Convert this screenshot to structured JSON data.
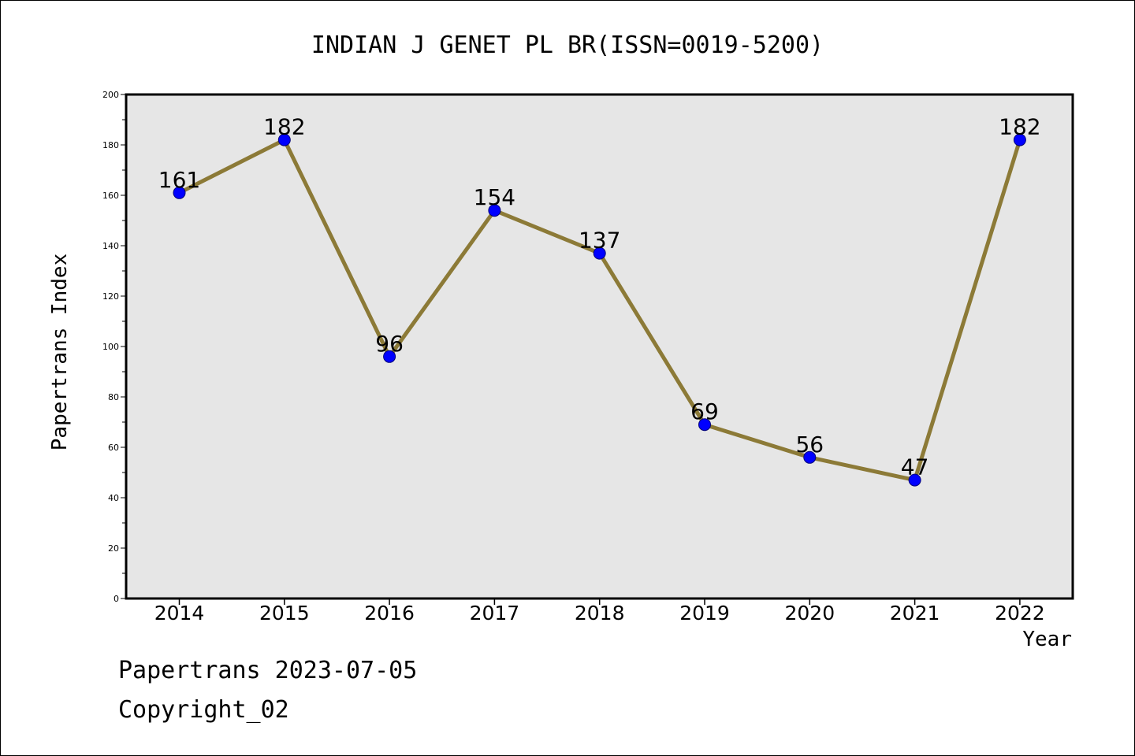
{
  "chart_data": {
    "type": "line",
    "title": "INDIAN J GENET PL BR(ISSN=0019-5200)",
    "xlabel": "Year",
    "ylabel": "Papertrans Index",
    "categories": [
      "2014",
      "2015",
      "2016",
      "2017",
      "2018",
      "2019",
      "2020",
      "2021",
      "2022"
    ],
    "series": [
      {
        "values": [
          161,
          182,
          96,
          154,
          137,
          69,
          56,
          47,
          182
        ]
      }
    ],
    "ylim": [
      0,
      200
    ],
    "y_ticks": [
      "0",
      "20",
      "40",
      "60",
      "80",
      "100",
      "120",
      "140",
      "160",
      "180",
      "200"
    ],
    "grid": false,
    "data_labels": true,
    "colors": {
      "line": "#8c7a37",
      "marker": "#0000ff",
      "plot_bg": "#e6e6e6",
      "axis": "#000000"
    }
  },
  "footer": {
    "line1": "Papertrans 2023-07-05",
    "line2": "Copyright_02"
  }
}
